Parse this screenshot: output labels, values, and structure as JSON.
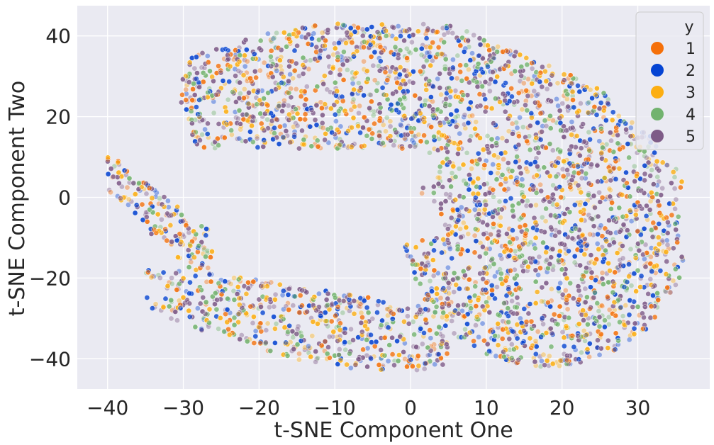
{
  "chart_data": {
    "type": "scatter",
    "title": "",
    "xlabel": "t-SNE Component One",
    "ylabel": "t-SNE Component Two",
    "xlim": [
      -44,
      39.5
    ],
    "ylim": [
      -47.5,
      47.5
    ],
    "xticks": [
      -40,
      -30,
      -20,
      -10,
      0,
      10,
      20,
      30
    ],
    "yticks": [
      -40,
      -20,
      0,
      20,
      40
    ],
    "xtick_labels": [
      "−40",
      "−30",
      "−20",
      "−10",
      "0",
      "10",
      "20",
      "30"
    ],
    "ytick_labels": [
      "−40",
      "−20",
      "0",
      "20",
      "40"
    ],
    "grid": true,
    "legend": {
      "title": "y",
      "placement": "top-right",
      "entries": [
        "1",
        "2",
        "3",
        "4",
        "5"
      ]
    },
    "series": [
      {
        "name": "1",
        "color": "#f5700a"
      },
      {
        "name": "2",
        "color": "#0544d3"
      },
      {
        "name": "3",
        "color": "#fcae12"
      },
      {
        "name": "4",
        "color": "#72b36f"
      },
      {
        "name": "5",
        "color": "#7e5b87"
      }
    ],
    "point_opacity": 0.4,
    "region_description": "dense crescent-shaped cloud of points from all five classes, spanning x about -40 to 36 and y about -43 to 43, with an empty notch on the left between y -17 and 10",
    "regions": [
      {
        "name": "upper-arm",
        "x_range": [
          -32,
          30
        ],
        "y_range": [
          12,
          43
        ]
      },
      {
        "name": "right-body",
        "x_range": [
          0,
          36
        ],
        "y_range": [
          -42,
          25
        ]
      },
      {
        "name": "lower-arm",
        "x_range": [
          -40,
          5
        ],
        "y_range": [
          -43,
          -15
        ]
      },
      {
        "name": "left-tip",
        "x_range": [
          -40,
          -27
        ],
        "y_range": [
          -25,
          12
        ]
      }
    ]
  }
}
